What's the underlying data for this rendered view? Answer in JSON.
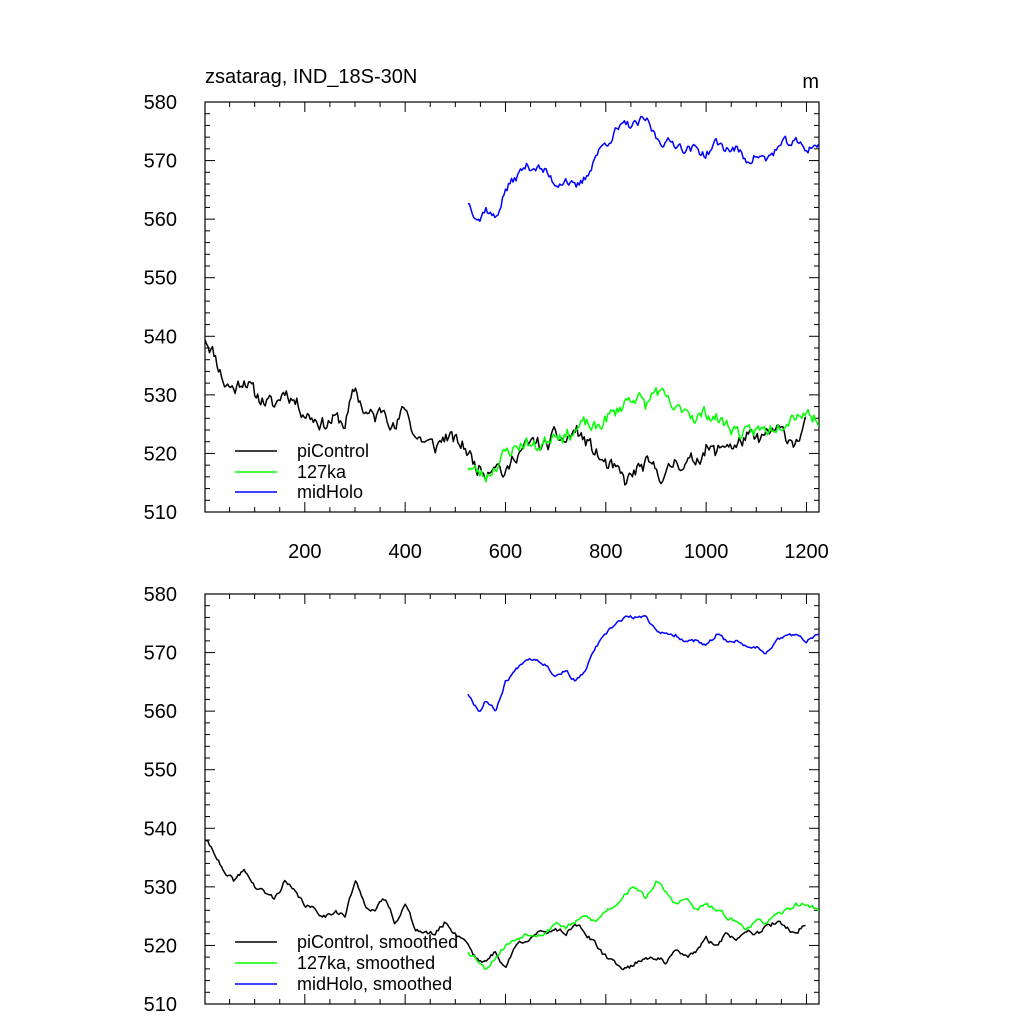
{
  "chart_data": [
    {
      "type": "line",
      "title": "zsatarag, IND_18S-30N",
      "units": "m",
      "xlabel": "",
      "ylabel": "",
      "xlim": [
        1,
        1225
      ],
      "ylim": [
        510,
        580
      ],
      "xticks": [
        200,
        400,
        600,
        800,
        1000,
        1200
      ],
      "xticklabels": [
        "200",
        "400",
        "600",
        "800",
        "1000",
        "1200"
      ],
      "yticks": [
        510,
        520,
        530,
        540,
        550,
        560,
        570,
        580
      ],
      "yticklabels": [
        "510",
        "520",
        "530",
        "540",
        "550",
        "560",
        "570",
        "580"
      ],
      "show_xticklabels": true,
      "grid": false,
      "legend_position": "bottom-left",
      "series": [
        {
          "name": "piControl",
          "color": "#000000",
          "noise": 2.5,
          "seed": 11,
          "x": [
            1,
            20,
            40,
            60,
            80,
            100,
            120,
            140,
            160,
            180,
            200,
            220,
            240,
            260,
            280,
            300,
            320,
            340,
            360,
            380,
            400,
            420,
            440,
            460,
            480,
            500,
            520,
            540,
            560,
            580,
            600,
            620,
            640,
            660,
            680,
            700,
            720,
            740,
            760,
            780,
            800,
            820,
            840,
            860,
            880,
            900,
            920,
            940,
            960,
            980,
            1000,
            1020,
            1040,
            1060,
            1080,
            1100,
            1120,
            1140,
            1160,
            1180,
            1200
          ],
          "values": [
            540,
            537,
            532,
            531,
            533,
            530,
            529,
            528,
            531,
            529,
            527,
            526,
            525,
            526,
            525,
            531,
            527,
            526,
            528,
            524,
            528,
            523,
            522,
            521,
            523,
            522,
            521,
            518,
            517,
            519,
            516,
            520,
            521,
            522,
            521,
            523,
            522,
            524,
            522,
            520,
            518,
            517,
            515,
            517,
            518,
            517,
            516,
            519,
            518,
            519,
            521,
            520,
            522,
            521,
            523,
            522,
            523,
            524,
            523,
            522,
            525
          ]
        },
        {
          "name": "127ka",
          "color": "#00ff00",
          "noise": 2.3,
          "seed": 23,
          "x": [
            525,
            540,
            560,
            580,
            600,
            620,
            640,
            660,
            680,
            700,
            720,
            740,
            760,
            780,
            800,
            820,
            840,
            860,
            880,
            900,
            920,
            940,
            960,
            980,
            1000,
            1020,
            1040,
            1060,
            1080,
            1100,
            1120,
            1140,
            1160,
            1180,
            1200,
            1225
          ],
          "values": [
            518,
            517,
            516,
            518,
            520,
            521,
            522,
            521,
            522,
            524,
            523,
            524,
            525,
            524,
            526,
            527,
            529,
            530,
            528,
            531,
            529,
            527,
            528,
            526,
            527,
            526,
            525,
            524,
            523,
            524,
            524,
            525,
            526,
            527,
            527,
            526
          ]
        },
        {
          "name": "midHolo",
          "color": "#0000ff",
          "noise": 1.6,
          "seed": 37,
          "x": [
            525,
            540,
            550,
            560,
            570,
            580,
            600,
            620,
            640,
            660,
            680,
            700,
            720,
            740,
            760,
            780,
            800,
            820,
            840,
            860,
            880,
            900,
            920,
            940,
            960,
            980,
            1000,
            1020,
            1040,
            1060,
            1080,
            1100,
            1120,
            1140,
            1160,
            1180,
            1200,
            1225
          ],
          "values": [
            563,
            561,
            560,
            562,
            561,
            560,
            565,
            567,
            569,
            569,
            568,
            566,
            567,
            565,
            567,
            571,
            573,
            575,
            576,
            576,
            577,
            574,
            573,
            573,
            572,
            572,
            571,
            573,
            572,
            572,
            570,
            571,
            570,
            572,
            573,
            573,
            572,
            573
          ]
        }
      ]
    },
    {
      "type": "line",
      "title": "",
      "xlabel": "",
      "ylabel": "",
      "xlim": [
        1,
        1225
      ],
      "ylim": [
        510,
        580
      ],
      "xticks": [
        200,
        400,
        600,
        800,
        1000,
        1200
      ],
      "yticks": [
        510,
        520,
        530,
        540,
        550,
        560,
        570,
        580
      ],
      "yticklabels": [
        "510",
        "520",
        "530",
        "540",
        "550",
        "560",
        "570",
        "580"
      ],
      "show_xticklabels": false,
      "grid": false,
      "legend_position": "bottom-left",
      "series": [
        {
          "name": "piControl, smoothed",
          "color": "#000000",
          "noise": 0.8,
          "seed": 41,
          "x": [
            1,
            20,
            40,
            60,
            80,
            100,
            120,
            140,
            160,
            180,
            200,
            220,
            240,
            260,
            280,
            300,
            320,
            340,
            360,
            380,
            400,
            420,
            440,
            460,
            480,
            500,
            520,
            540,
            560,
            580,
            600,
            620,
            640,
            660,
            680,
            700,
            720,
            740,
            760,
            780,
            800,
            820,
            840,
            860,
            880,
            900,
            920,
            940,
            960,
            980,
            1000,
            1020,
            1040,
            1060,
            1080,
            1100,
            1120,
            1140,
            1160,
            1180,
            1200
          ],
          "values": [
            538,
            536,
            532,
            531,
            533,
            530,
            529,
            528,
            531,
            529,
            527,
            526,
            525,
            526,
            525,
            531,
            527,
            526,
            528,
            524,
            527,
            523,
            522,
            522,
            524,
            522,
            521,
            518,
            517,
            519,
            516,
            520,
            521,
            522,
            522,
            523,
            522,
            524,
            522,
            520,
            518,
            517,
            516,
            517,
            518,
            518,
            517,
            519,
            518,
            519,
            521,
            520,
            522,
            521,
            523,
            522,
            523,
            524,
            523,
            522,
            524
          ]
        },
        {
          "name": "127ka, smoothed",
          "color": "#00ff00",
          "noise": 0.7,
          "seed": 53,
          "x": [
            525,
            540,
            560,
            580,
            600,
            620,
            640,
            660,
            680,
            700,
            720,
            740,
            760,
            780,
            800,
            820,
            840,
            860,
            880,
            900,
            920,
            940,
            960,
            980,
            1000,
            1020,
            1040,
            1060,
            1080,
            1100,
            1120,
            1140,
            1160,
            1180,
            1200,
            1225
          ],
          "values": [
            519,
            518,
            516,
            518,
            520,
            521,
            522,
            522,
            522,
            524,
            523,
            524,
            525,
            524,
            526,
            527,
            529,
            530,
            528,
            531,
            529,
            527,
            528,
            526,
            527,
            526,
            525,
            524,
            523,
            524,
            524,
            525,
            526,
            527,
            527,
            526
          ]
        },
        {
          "name": "midHolo, smoothed",
          "color": "#0000ff",
          "noise": 0.6,
          "seed": 67,
          "x": [
            525,
            540,
            550,
            560,
            570,
            580,
            600,
            620,
            640,
            660,
            680,
            700,
            720,
            740,
            760,
            780,
            800,
            820,
            840,
            860,
            880,
            900,
            920,
            940,
            960,
            980,
            1000,
            1020,
            1040,
            1060,
            1080,
            1100,
            1120,
            1140,
            1160,
            1180,
            1200,
            1225
          ],
          "values": [
            563,
            561,
            560,
            562,
            561,
            560,
            565,
            567,
            569,
            569,
            568,
            566,
            567,
            565,
            567,
            571,
            573,
            575,
            576,
            576,
            576,
            574,
            573,
            573,
            572,
            572,
            571,
            573,
            572,
            572,
            571,
            571,
            570,
            572,
            573,
            573,
            572,
            573
          ]
        }
      ]
    }
  ]
}
